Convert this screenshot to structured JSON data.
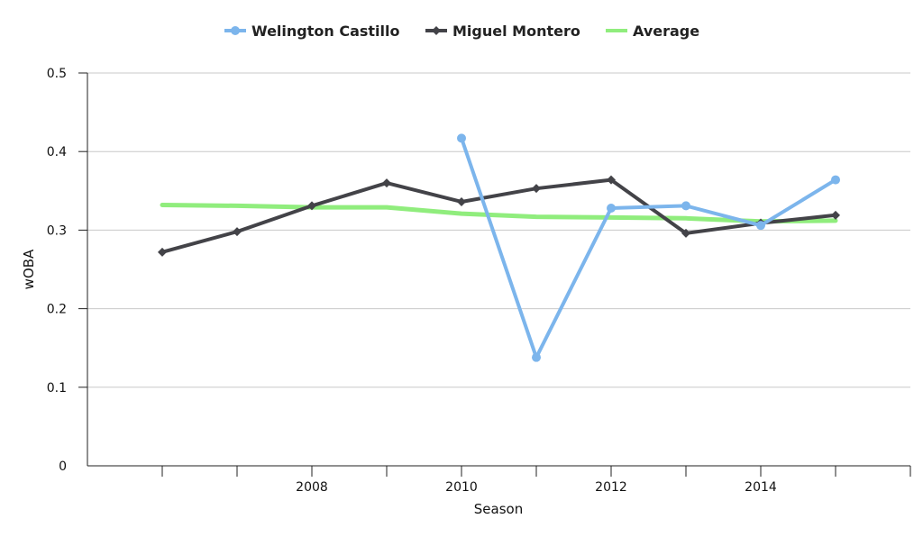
{
  "chart_data": {
    "type": "line",
    "xlabel": "Season",
    "ylabel": "wOBA",
    "ylim": [
      0,
      0.5
    ],
    "xlim": [
      2005,
      2016
    ],
    "x_ticks": [
      "2008",
      "2010",
      "2012",
      "2014"
    ],
    "y_ticks": [
      "0",
      "0.1",
      "0.2",
      "0.3",
      "0.4",
      "0.5"
    ],
    "grid": "horizontal",
    "legend_position": "top-center",
    "series": [
      {
        "name": "Welington Castillo",
        "color": "#7cb5ec",
        "marker": "circle",
        "points": [
          {
            "x": 2010,
            "y": 0.417
          },
          {
            "x": 2011,
            "y": 0.138
          },
          {
            "x": 2012,
            "y": 0.328
          },
          {
            "x": 2013,
            "y": 0.331
          },
          {
            "x": 2014,
            "y": 0.306
          },
          {
            "x": 2015,
            "y": 0.364
          }
        ]
      },
      {
        "name": "Miguel Montero",
        "color": "#434348",
        "marker": "diamond",
        "points": [
          {
            "x": 2006,
            "y": 0.272
          },
          {
            "x": 2007,
            "y": 0.298
          },
          {
            "x": 2008,
            "y": 0.331
          },
          {
            "x": 2009,
            "y": 0.36
          },
          {
            "x": 2010,
            "y": 0.336
          },
          {
            "x": 2011,
            "y": 0.353
          },
          {
            "x": 2012,
            "y": 0.364
          },
          {
            "x": 2013,
            "y": 0.296
          },
          {
            "x": 2014,
            "y": 0.309
          },
          {
            "x": 2015,
            "y": 0.319
          }
        ]
      },
      {
        "name": "Average",
        "color": "#90ed7d",
        "marker": "none",
        "points": [
          {
            "x": 2006,
            "y": 0.332
          },
          {
            "x": 2007,
            "y": 0.331
          },
          {
            "x": 2008,
            "y": 0.329
          },
          {
            "x": 2009,
            "y": 0.329
          },
          {
            "x": 2010,
            "y": 0.321
          },
          {
            "x": 2011,
            "y": 0.317
          },
          {
            "x": 2012,
            "y": 0.316
          },
          {
            "x": 2013,
            "y": 0.315
          },
          {
            "x": 2014,
            "y": 0.311
          },
          {
            "x": 2015,
            "y": 0.312
          }
        ]
      }
    ]
  }
}
